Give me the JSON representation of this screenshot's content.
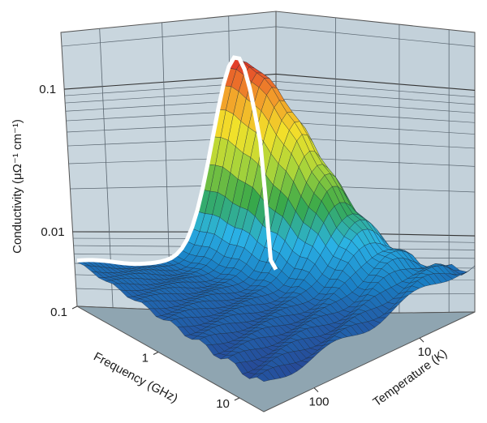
{
  "chart_data": {
    "type": "surface3d",
    "title": "",
    "zlabel": "Conductivity (μΩ⁻¹ cm⁻¹)",
    "xlabel": "Frequency (GHz)",
    "ylabel": "Temperature (K)",
    "z_scale": "log",
    "x_scale": "log",
    "y_scale": "log",
    "z_ticks": [
      {
        "value": 0.01,
        "label": "0.01"
      },
      {
        "value": 0.1,
        "label": "0.1"
      }
    ],
    "x_ticks": [
      {
        "value": 0.1,
        "label": "0.1"
      },
      {
        "value": 1,
        "label": "1"
      },
      {
        "value": 10,
        "label": "10"
      }
    ],
    "y_ticks": [
      {
        "value": 10,
        "label": "10"
      },
      {
        "value": 100,
        "label": "100"
      }
    ],
    "zlim": [
      0.003,
      0.25
    ],
    "xlim": [
      0.1,
      20
    ],
    "ylim": [
      3,
      300
    ],
    "colormap": [
      "#2a3a8a",
      "#1a7fc4",
      "#2bb3e6",
      "#37a84a",
      "#a8d43a",
      "#f2e12a",
      "#f29a2a",
      "#e0302a"
    ],
    "peak": {
      "conductivity": 0.16,
      "temperature_K": 15
    },
    "low_T_edge_conductivity": 0.0075,
    "high_T_floor_conductivity": 0.006
  }
}
